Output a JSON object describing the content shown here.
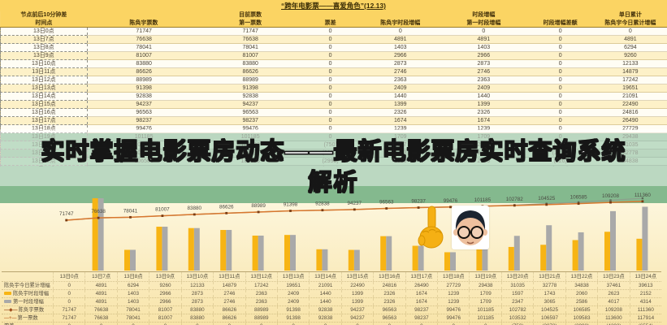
{
  "title": "“跨年电影票——喜爱角色”(12.13)",
  "banner": {
    "line1": "实时掌握电影票房动态——最新电影票房实时查询系统",
    "line2": "解析"
  },
  "table": {
    "headers": [
      {
        "line1": "节点前后10分钟差",
        "line2": "时间点"
      },
      {
        "line1": "",
        "line2": "陈奂宇票数"
      },
      {
        "line1": "目前票数",
        "line2": "第一票数"
      },
      {
        "line1": "",
        "line2": "票差"
      },
      {
        "line1": "",
        "line2": "陈奂宇时段增幅"
      },
      {
        "line1": "时段增幅",
        "line2": "第一时段增幅"
      },
      {
        "line1": "",
        "line2": "时段增幅差额"
      },
      {
        "line1": "单日累计",
        "line2": "陈奂宇今日累计增幅"
      }
    ],
    "green_from_index": 13,
    "rows": [
      [
        "13日0点",
        "71747",
        "71747",
        "0",
        "0",
        "0",
        "0",
        "0"
      ],
      [
        "13日7点",
        "76638",
        "76638",
        "0",
        "4891",
        "4891",
        "0",
        "4891"
      ],
      [
        "13日8点",
        "78041",
        "78041",
        "0",
        "1403",
        "1403",
        "0",
        "6294"
      ],
      [
        "13日9点",
        "81007",
        "81007",
        "0",
        "2966",
        "2966",
        "0",
        "9260"
      ],
      [
        "13日10点",
        "83880",
        "83880",
        "0",
        "2873",
        "2873",
        "0",
        "12133"
      ],
      [
        "13日11点",
        "86626",
        "86626",
        "0",
        "2746",
        "2746",
        "0",
        "14879"
      ],
      [
        "13日12点",
        "88989",
        "88989",
        "0",
        "2363",
        "2363",
        "0",
        "17242"
      ],
      [
        "13日13点",
        "91398",
        "91398",
        "0",
        "2409",
        "2409",
        "0",
        "19651"
      ],
      [
        "13日14点",
        "92838",
        "92838",
        "0",
        "1440",
        "1440",
        "0",
        "21091"
      ],
      [
        "13日15点",
        "94237",
        "94237",
        "0",
        "1399",
        "1399",
        "0",
        "22490"
      ],
      [
        "13日16点",
        "96563",
        "96563",
        "0",
        "2326",
        "2326",
        "0",
        "24816"
      ],
      [
        "13日17点",
        "98237",
        "98237",
        "0",
        "1674",
        "1674",
        "0",
        "26490"
      ],
      [
        "13日18点",
        "99476",
        "99476",
        "0",
        "1239",
        "1239",
        "0",
        "27729"
      ],
      [
        "13日19点",
        "101185",
        "101185",
        "0",
        "1709",
        "1709",
        "0",
        "29438"
      ],
      [
        "13日20点",
        "102782",
        "103532",
        "(750)",
        "1597",
        "2347",
        "(750)",
        "31035"
      ],
      [
        "13日21点",
        "104525",
        "106597",
        "(2072)",
        "1743",
        "3065",
        "(1322)",
        "32778"
      ],
      [
        "13日22点",
        "106585",
        "109583",
        "(2998)",
        "2060",
        "2586",
        "(526)",
        "34838"
      ],
      [
        "13日23点",
        "109208",
        "113600",
        "(4392)",
        "2623",
        "4017",
        "(1394)",
        "37461"
      ],
      [
        "13日24点",
        "111360",
        "117914",
        "(6554)",
        "2152",
        "4314",
        "(2162)",
        "39613"
      ]
    ]
  },
  "chart_data": {
    "type": "bar",
    "subtype": "combo bar+line with bottom data table legend",
    "title": "",
    "xlabel": "",
    "ylabel": "",
    "grid": false,
    "legend_position": "bottom-table",
    "data_labels_series": "陈奂宇票数",
    "categories": [
      "13日0点",
      "13日7点",
      "13日8点",
      "13日9点",
      "13日10点",
      "13日11点",
      "13日12点",
      "13日13点",
      "13日14点",
      "13日15点",
      "13日16点",
      "13日17点",
      "13日18点",
      "13日19点",
      "13日20点",
      "13日21点",
      "13日22点",
      "13日23点",
      "13日24点"
    ],
    "series": [
      {
        "name": "陈奂宇今日累计增幅",
        "type": "table-row",
        "marker": "none",
        "values": [
          0,
          4891,
          6294,
          9260,
          12133,
          14879,
          17242,
          19651,
          21091,
          22490,
          24816,
          26490,
          27729,
          29438,
          31035,
          32778,
          34838,
          37461,
          39613
        ]
      },
      {
        "name": "陈奂宇时段增幅",
        "type": "bar",
        "color": "#f7b414",
        "values": [
          0,
          4891,
          1403,
          2966,
          2873,
          2746,
          2363,
          2409,
          1440,
          1399,
          2326,
          1674,
          1239,
          1709,
          1597,
          1743,
          2060,
          2623,
          2152
        ]
      },
      {
        "name": "第一时段增幅",
        "type": "bar",
        "color": "#a9a9a9",
        "values": [
          0,
          4891,
          1403,
          2966,
          2873,
          2746,
          2363,
          2409,
          1440,
          1399,
          2326,
          1674,
          1239,
          1709,
          2347,
          3065,
          2586,
          4017,
          4314
        ]
      },
      {
        "name": "陈奂宇票数",
        "type": "line",
        "color": "#d9772e",
        "marker_color": "#7a3c12",
        "values": [
          71747,
          76638,
          78041,
          81007,
          83880,
          86626,
          88989,
          91398,
          92838,
          94237,
          96563,
          98237,
          99476,
          101185,
          102782,
          104525,
          106585,
          109208,
          111360
        ]
      },
      {
        "name": "第一票数",
        "type": "line",
        "color": "#8da08c",
        "marker_color": "#5a6b57",
        "values": [
          71747,
          76638,
          78041,
          81007,
          83880,
          86626,
          88989,
          91398,
          92838,
          94237,
          96563,
          98237,
          99476,
          101185,
          103532,
          106597,
          109583,
          113600,
          117914
        ]
      },
      {
        "name": "票差",
        "type": "table-row",
        "marker": "none",
        "values": [
          "0",
          "0",
          "0",
          "0",
          "0",
          "0",
          "0",
          "0",
          "0",
          "0",
          "0",
          "0",
          "0",
          "0",
          "(750)",
          "(2072)",
          "(2998)",
          "(4392)",
          "(6554)"
        ]
      }
    ]
  },
  "emoji": {
    "finger": "pointing-up-finger",
    "face": "boy-with-glasses"
  },
  "colors": {
    "table_bg": "#fbd56a",
    "green_bg": "#84b98e",
    "bar_yellow": "#f7b414",
    "bar_gray": "#a9a9a9",
    "line_orange": "#d9772e",
    "line_second": "#8da08c",
    "banner_overlay": "rgba(255,255,255,0.45)"
  }
}
